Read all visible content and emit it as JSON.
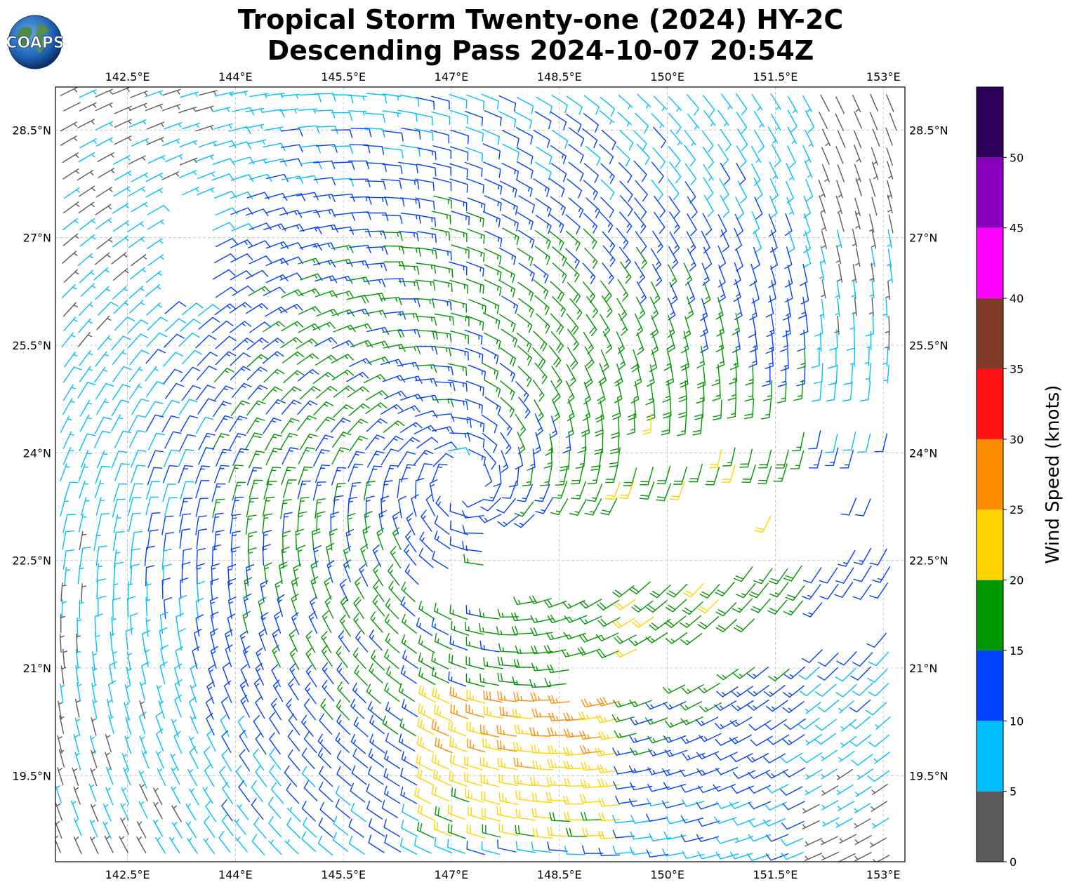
{
  "title": {
    "line1": "Tropical Storm Twenty-one (2024) HY-2C",
    "line2": "Descending Pass 2024-10-07 20:54Z"
  },
  "logo": {
    "text": "COAPS",
    "icon": "globe-icon"
  },
  "map": {
    "lon_range": [
      141.5,
      153.3
    ],
    "lat_range": [
      18.3,
      29.1
    ],
    "lon_ticks": [
      142.5,
      144,
      145.5,
      147,
      148.5,
      150,
      151.5,
      153
    ],
    "lon_tick_labels": [
      "142.5°E",
      "144°E",
      "145.5°E",
      "147°E",
      "148.5°E",
      "150°E",
      "151.5°E",
      "153°E"
    ],
    "lat_ticks": [
      19.5,
      21,
      22.5,
      24,
      25.5,
      27,
      28.5
    ],
    "lat_tick_labels": [
      "19.5°N",
      "21°N",
      "22.5°N",
      "24°N",
      "25.5°N",
      "27°N",
      "28.5°N"
    ],
    "grid": true,
    "storm_center": [
      147.2,
      23.6
    ]
  },
  "colorbar": {
    "label": "Wind Speed (knots)",
    "bounds": [
      0,
      5,
      10,
      15,
      20,
      25,
      30,
      35,
      40,
      45,
      50,
      55
    ],
    "tick_values": [
      0,
      5,
      10,
      15,
      20,
      25,
      30,
      35,
      40,
      45,
      50
    ],
    "tick_labels": [
      "0",
      "5",
      "10",
      "15",
      "20",
      "25",
      "30",
      "35",
      "40",
      "45",
      "50"
    ],
    "colors": [
      "#5a5a5a",
      "#00bfff",
      "#0040ff",
      "#009600",
      "#ffd400",
      "#ff8c00",
      "#ff1010",
      "#7f3b26",
      "#ff00ff",
      "#8800bb",
      "#2d005a"
    ]
  }
}
